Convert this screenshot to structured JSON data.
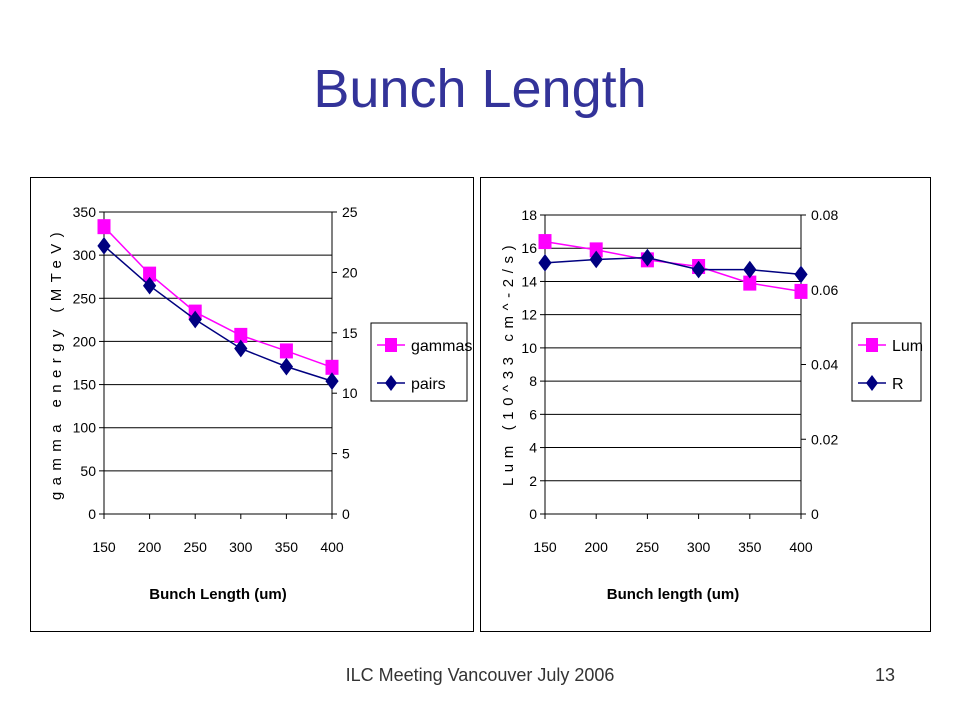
{
  "slide": {
    "title": "Bunch Length",
    "footer": "ILC Meeting Vancouver July 2006",
    "page_number": "13"
  },
  "colors": {
    "title": "#333399",
    "series_pink": "#ff00ff",
    "series_navy": "#000080"
  },
  "chart_data": [
    {
      "type": "line",
      "x": [
        150,
        200,
        250,
        300,
        350,
        400
      ],
      "x_ticks": [
        "150",
        "200",
        "250",
        "300",
        "350",
        "400"
      ],
      "xlabel": "Bunch Length (um)",
      "ylabel_left": "gamma energy (MTeV)",
      "ylim_left": [
        0,
        350
      ],
      "yticks_left": [
        "0",
        "50",
        "100",
        "150",
        "200",
        "250",
        "300",
        "350"
      ],
      "ylim_right": [
        0,
        25
      ],
      "yticks_right": [
        "0",
        "5",
        "10",
        "15",
        "20",
        "25"
      ],
      "grid": true,
      "legend_position": "right",
      "series": [
        {
          "name": "gammas",
          "axis": "left",
          "color": "#ff00ff",
          "marker": "square",
          "values": [
            333,
            278,
            234,
            207,
            189,
            170
          ]
        },
        {
          "name": "pairs",
          "axis": "right",
          "color": "#000080",
          "marker": "diamond",
          "values": [
            22.2,
            18.9,
            16.1,
            13.7,
            12.2,
            11.0
          ]
        }
      ]
    },
    {
      "type": "line",
      "x": [
        150,
        200,
        250,
        300,
        350,
        400
      ],
      "x_ticks": [
        "150",
        "200",
        "250",
        "300",
        "350",
        "400"
      ],
      "xlabel": "Bunch length (um)",
      "ylabel_left": "Lum (10^33 cm^-2/s)",
      "ylim_left": [
        0,
        18
      ],
      "yticks_left": [
        "0",
        "2",
        "4",
        "6",
        "8",
        "10",
        "12",
        "14",
        "16",
        "18"
      ],
      "ylim_right": [
        0,
        0.08
      ],
      "yticks_right": [
        "0",
        "0.02",
        "0.04",
        "0.06",
        "0.08"
      ],
      "grid": true,
      "legend_position": "right",
      "series": [
        {
          "name": "Lum",
          "axis": "left",
          "color": "#ff00ff",
          "marker": "square",
          "values": [
            16.4,
            15.9,
            15.3,
            14.9,
            13.9,
            13.4
          ]
        },
        {
          "name": "R",
          "axis": "right",
          "color": "#000080",
          "marker": "diamond",
          "values": [
            0.0672,
            0.0681,
            0.0686,
            0.0654,
            0.0654,
            0.0641
          ]
        }
      ]
    }
  ]
}
